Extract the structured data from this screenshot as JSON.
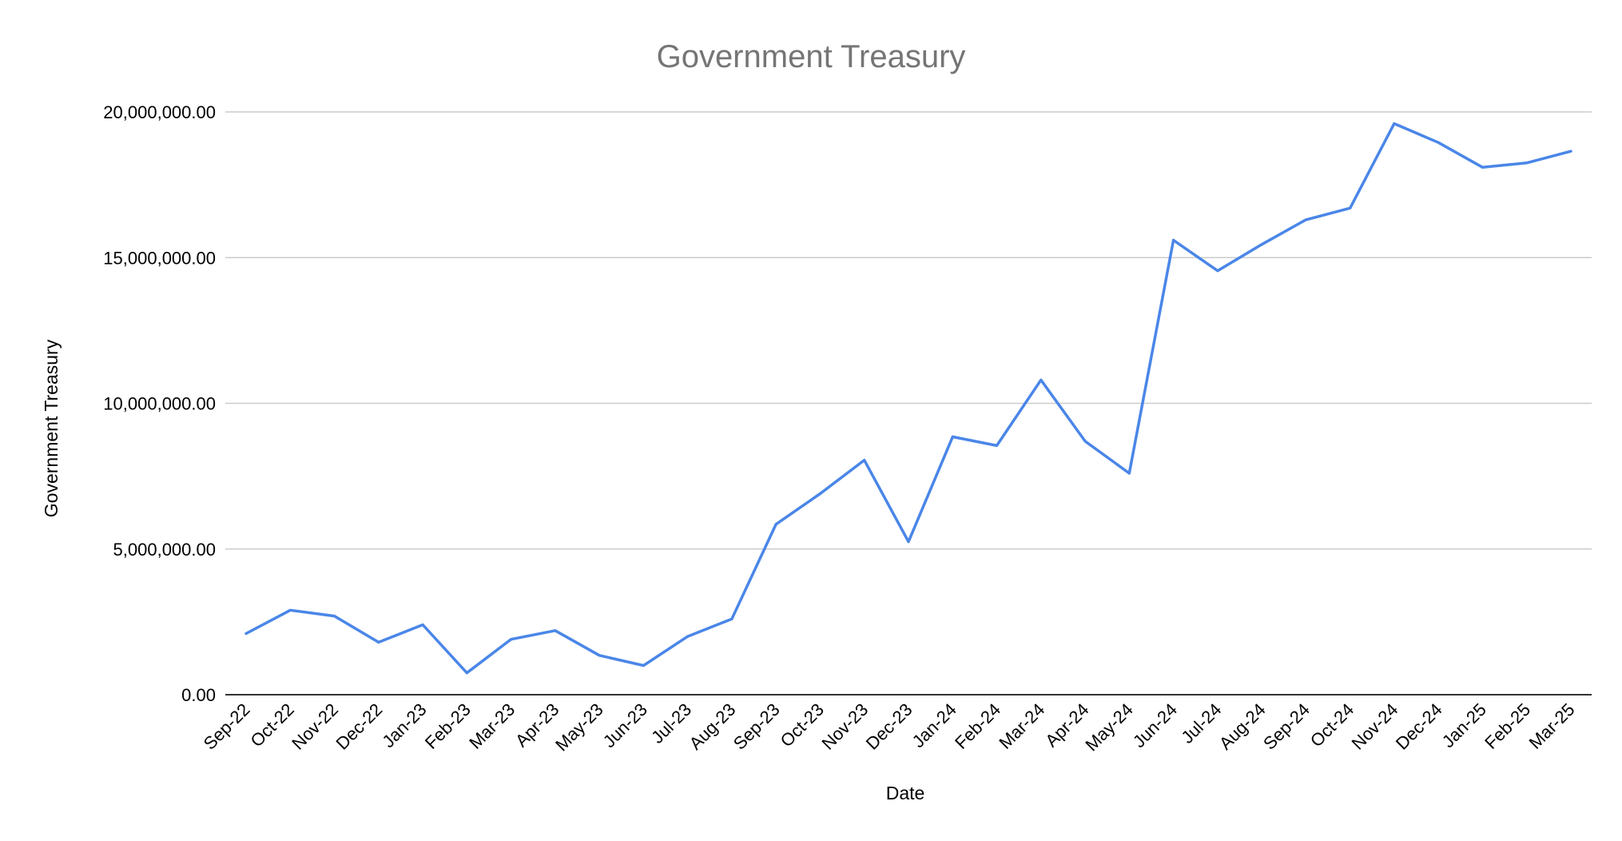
{
  "chart_data": {
    "type": "line",
    "title": "Government Treasury",
    "xlabel": "Date",
    "ylabel": "Government Treasury",
    "ylim": [
      0,
      20000000
    ],
    "yticks": [
      0,
      5000000,
      10000000,
      15000000,
      20000000
    ],
    "ytick_labels": [
      "0.00",
      "5,000,000.00",
      "10,000,000.00",
      "15,000,000.00",
      "20,000,000.00"
    ],
    "grid": true,
    "legend": "none",
    "categories": [
      "Sep-22",
      "Oct-22",
      "Nov-22",
      "Dec-22",
      "Jan-23",
      "Feb-23",
      "Mar-23",
      "Apr-23",
      "May-23",
      "Jun-23",
      "Jul-23",
      "Aug-23",
      "Sep-23",
      "Oct-23",
      "Nov-23",
      "Dec-23",
      "Jan-24",
      "Feb-24",
      "Mar-24",
      "Apr-24",
      "May-24",
      "Jun-24",
      "Jul-24",
      "Aug-24",
      "Sep-24",
      "Oct-24",
      "Nov-24",
      "Dec-24",
      "Jan-25",
      "Feb-25",
      "Mar-25"
    ],
    "series": [
      {
        "color": "#4a86e8",
        "values": [
          2100000,
          2900000,
          2700000,
          1800000,
          2400000,
          750000,
          1900000,
          2200000,
          1350000,
          1000000,
          2000000,
          2600000,
          5850000,
          6900000,
          8050000,
          5250000,
          8850000,
          8550000,
          10800000,
          8700000,
          7600000,
          15600000,
          14550000,
          15450000,
          16300000,
          16700000,
          19600000,
          18950000,
          18100000,
          18250000,
          18650000
        ]
      }
    ]
  }
}
